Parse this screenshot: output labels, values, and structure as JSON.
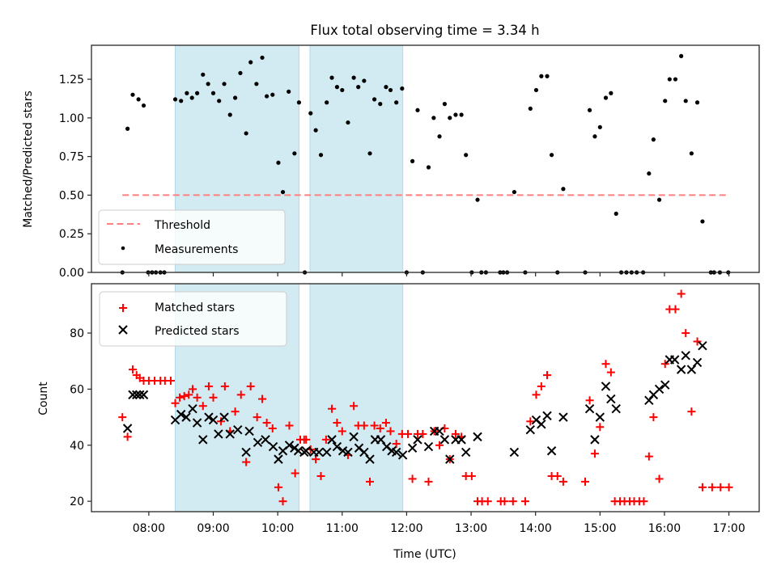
{
  "chart_data": [
    {
      "type": "scatter",
      "title": "Flux total observing time = 3.34 h",
      "xlabel": "",
      "ylabel": "Matched/Predicted stars",
      "xlim": [
        7.11,
        17.47
      ],
      "ylim": [
        0.0,
        1.47
      ],
      "yticks": [
        0.0,
        0.25,
        0.5,
        0.75,
        1.0,
        1.25
      ],
      "ytick_labels": [
        "0.00",
        "0.25",
        "0.50",
        "0.75",
        "1.00",
        "1.25"
      ],
      "xticks": [
        8,
        9,
        10,
        11,
        12,
        13,
        14,
        15,
        16,
        17
      ],
      "xtick_labels": [],
      "grid": false,
      "legend_position": "lower-left",
      "shaded_intervals": [
        [
          8.41,
          10.33
        ],
        [
          10.5,
          11.94
        ]
      ],
      "shade_color": "#add8e6",
      "series": [
        {
          "name": "Threshold",
          "kind": "line",
          "style": "dashed",
          "color": "#ff7f7f",
          "x": [
            7.59,
            17.0
          ],
          "y": [
            0.5,
            0.5
          ]
        },
        {
          "name": "Measurements",
          "kind": "scatter",
          "marker": "dot",
          "color": "#000000",
          "x": [
            7.59,
            7.67,
            7.75,
            7.84,
            7.92,
            7.99,
            8.05,
            8.11,
            8.18,
            8.24,
            8.41,
            8.5,
            8.59,
            8.67,
            8.75,
            8.84,
            8.92,
            9.0,
            9.09,
            9.17,
            9.26,
            9.34,
            9.42,
            9.51,
            9.58,
            9.67,
            9.76,
            9.83,
            9.92,
            10.01,
            10.08,
            10.17,
            10.26,
            10.33,
            10.42,
            10.51,
            10.59,
            10.67,
            10.76,
            10.84,
            10.92,
            11.0,
            11.09,
            11.18,
            11.25,
            11.34,
            11.43,
            11.5,
            11.59,
            11.68,
            11.75,
            11.84,
            11.93,
            12.0,
            12.09,
            12.17,
            12.25,
            12.34,
            12.42,
            12.51,
            12.59,
            12.67,
            12.76,
            12.85,
            12.92,
            13.01,
            13.1,
            13.16,
            13.23,
            13.45,
            13.5,
            13.56,
            13.67,
            13.84,
            13.92,
            14.01,
            14.09,
            14.18,
            14.25,
            14.34,
            14.43,
            14.77,
            14.84,
            14.92,
            15.0,
            15.09,
            15.17,
            15.25,
            15.33,
            15.41,
            15.49,
            15.57,
            15.67,
            15.76,
            15.83,
            15.92,
            16.01,
            16.08,
            16.17,
            16.26,
            16.33,
            16.42,
            16.51,
            16.59,
            16.72,
            16.77,
            16.86,
            16.99
          ],
          "y": [
            0.0,
            0.93,
            1.15,
            1.12,
            1.08,
            0.0,
            0.0,
            0.0,
            0.0,
            0.0,
            1.12,
            1.11,
            1.16,
            1.13,
            1.16,
            1.28,
            1.22,
            1.16,
            1.11,
            1.22,
            1.02,
            1.13,
            1.29,
            0.9,
            1.36,
            1.22,
            1.39,
            1.14,
            1.15,
            0.71,
            0.52,
            1.17,
            0.77,
            1.1,
            0.0,
            1.03,
            0.92,
            0.76,
            1.1,
            1.26,
            1.2,
            1.18,
            0.97,
            1.26,
            1.2,
            1.24,
            0.77,
            1.12,
            1.09,
            1.2,
            1.18,
            1.1,
            1.19,
            0.0,
            0.72,
            1.05,
            0.0,
            0.68,
            1.0,
            0.88,
            1.09,
            1.0,
            1.02,
            1.02,
            0.76,
            0.0,
            0.47,
            0.0,
            0.0,
            0.0,
            0.0,
            0.0,
            0.52,
            0.0,
            1.06,
            1.18,
            1.27,
            1.27,
            0.76,
            0.0,
            0.54,
            0.0,
            1.05,
            0.88,
            0.94,
            1.13,
            1.16,
            0.38,
            0.0,
            0.0,
            0.0,
            0.0,
            0.0,
            0.64,
            0.86,
            0.47,
            1.11,
            1.25,
            1.25,
            1.4,
            1.11,
            0.77,
            1.1,
            0.33,
            0.0,
            0.0,
            0.0,
            0.0
          ]
        }
      ]
    },
    {
      "type": "scatter",
      "title": "",
      "xlabel": "Time (UTC)",
      "ylabel": "Count",
      "xlim": [
        7.11,
        17.47
      ],
      "ylim": [
        16.3,
        97.6
      ],
      "yticks": [
        20,
        40,
        60,
        80
      ],
      "ytick_labels": [
        "20",
        "40",
        "60",
        "80"
      ],
      "xticks": [
        8,
        9,
        10,
        11,
        12,
        13,
        14,
        15,
        16,
        17
      ],
      "xtick_labels": [
        "08:00",
        "09:00",
        "10:00",
        "11:00",
        "12:00",
        "13:00",
        "14:00",
        "15:00",
        "16:00",
        "17:00"
      ],
      "grid": false,
      "legend_position": "upper-left",
      "shaded_intervals": [
        [
          8.41,
          10.33
        ],
        [
          10.5,
          11.94
        ]
      ],
      "shade_color": "#add8e6",
      "series": [
        {
          "name": "Matched stars",
          "kind": "scatter",
          "marker": "plus",
          "color": "#ff0000",
          "x": [
            7.59,
            7.67,
            7.75,
            7.81,
            7.86,
            7.92,
            8.0,
            8.09,
            8.18,
            8.25,
            8.34,
            8.41,
            8.48,
            8.55,
            8.62,
            8.68,
            8.75,
            8.84,
            8.93,
            9.0,
            9.12,
            9.18,
            9.26,
            9.34,
            9.43,
            9.51,
            9.58,
            9.68,
            9.76,
            9.83,
            9.92,
            10.01,
            10.08,
            10.18,
            10.27,
            10.35,
            10.44,
            10.41,
            10.51,
            10.59,
            10.67,
            10.75,
            10.84,
            10.92,
            11.0,
            11.09,
            11.18,
            11.25,
            11.34,
            11.43,
            11.5,
            11.59,
            11.68,
            11.75,
            11.84,
            11.93,
            12.02,
            12.09,
            12.17,
            12.25,
            12.34,
            12.43,
            12.51,
            12.59,
            12.67,
            12.76,
            12.85,
            12.92,
            13.01,
            13.1,
            13.17,
            13.26,
            13.46,
            13.52,
            13.65,
            13.84,
            13.92,
            14.01,
            14.09,
            14.18,
            14.25,
            14.34,
            14.43,
            14.77,
            14.84,
            14.92,
            15.0,
            15.09,
            15.17,
            15.23,
            15.31,
            15.38,
            15.46,
            15.53,
            15.61,
            15.68,
            15.76,
            15.83,
            15.92,
            16.01,
            16.08,
            16.17,
            16.26,
            16.33,
            16.42,
            16.51,
            16.59,
            16.74,
            16.87,
            17.0
          ],
          "y": [
            50,
            43,
            67,
            65,
            64,
            63,
            63,
            63,
            63,
            63,
            63,
            55,
            57,
            57.5,
            58,
            60,
            57,
            54,
            61,
            57,
            48.5,
            61,
            45,
            52,
            58,
            34,
            61,
            50,
            56.5,
            48,
            46,
            25,
            20,
            47,
            30,
            42,
            42,
            42,
            38.5,
            35,
            29,
            42,
            53,
            48,
            45,
            36.5,
            54,
            47,
            47,
            27,
            47,
            46,
            48,
            45,
            40.5,
            44,
            44,
            28,
            44,
            44,
            27,
            45,
            40,
            46,
            35,
            44,
            43,
            29,
            29,
            20,
            20,
            20,
            20,
            20,
            20,
            20,
            48.5,
            58,
            61,
            65,
            29,
            29,
            27,
            27,
            56,
            37,
            46.5,
            69,
            66,
            20,
            20,
            20,
            20,
            20,
            20,
            20,
            36,
            50,
            28,
            69,
            88.5,
            88.5,
            94,
            80,
            52,
            77,
            25,
            25,
            25,
            25
          ]
        },
        {
          "name": "Predicted stars",
          "kind": "scatter",
          "marker": "x",
          "color": "#000000",
          "x": [
            7.67,
            7.75,
            7.81,
            7.86,
            7.92,
            8.41,
            8.5,
            8.58,
            8.68,
            8.75,
            8.84,
            8.93,
            9.0,
            9.08,
            9.17,
            9.26,
            9.38,
            9.51,
            9.56,
            9.69,
            9.81,
            9.93,
            10.01,
            10.08,
            10.18,
            10.26,
            10.32,
            10.41,
            10.44,
            10.56,
            10.64,
            10.76,
            10.84,
            10.92,
            11.01,
            11.09,
            11.18,
            11.26,
            11.34,
            11.43,
            11.51,
            11.6,
            11.69,
            11.77,
            11.84,
            11.94,
            12.09,
            12.17,
            12.34,
            12.43,
            12.51,
            12.59,
            12.67,
            12.76,
            12.85,
            12.92,
            13.1,
            13.67,
            13.92,
            14.01,
            14.09,
            14.18,
            14.25,
            14.43,
            14.84,
            14.92,
            15.0,
            15.09,
            15.17,
            15.25,
            15.76,
            15.83,
            15.92,
            16.01,
            16.08,
            16.16,
            16.26,
            16.33,
            16.42,
            16.51,
            16.59
          ],
          "y": [
            46,
            58,
            58,
            58,
            58,
            49,
            51,
            50,
            53,
            48,
            42,
            50,
            49,
            44,
            50,
            44,
            45.5,
            37.5,
            45,
            41,
            42,
            39.5,
            35,
            38,
            40,
            39,
            38,
            37.5,
            38,
            37.5,
            37.5,
            37.5,
            42,
            39.5,
            38,
            37.5,
            43,
            39,
            37.5,
            35,
            42,
            42,
            39.5,
            38,
            37.5,
            36.5,
            39,
            42,
            39.5,
            45,
            45,
            42,
            35,
            42,
            42,
            37.5,
            43,
            37.5,
            45.5,
            49,
            47.5,
            50.5,
            38,
            50,
            53,
            42,
            50,
            61,
            56.5,
            53,
            56,
            58,
            60,
            61.5,
            70.5,
            70.5,
            67,
            72,
            67,
            69.5,
            75.5
          ]
        }
      ]
    }
  ]
}
